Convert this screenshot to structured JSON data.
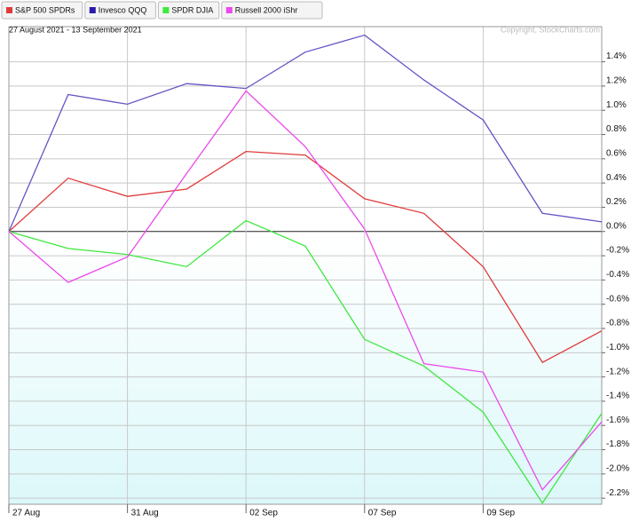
{
  "chart_data": {
    "type": "line",
    "subtitle": "27 August 2021 - 13 September 2021",
    "credit": "Copyright, StockCharts.com",
    "categories": [
      "27 Aug",
      null,
      "31 Aug",
      null,
      "02 Sep",
      null,
      "07 Sep",
      null,
      "09 Sep",
      null,
      null
    ],
    "series": [
      {
        "name": "S&P 500 SPDRs",
        "color": "#e03a3a",
        "values": [
          0,
          0.44,
          0.29,
          0.35,
          0.66,
          0.63,
          0.27,
          0.15,
          -0.29,
          -1.08,
          -0.82
        ]
      },
      {
        "name": "Invesco QQQ",
        "color": "#6a52c4",
        "legend_color": "#2b1aa8",
        "values": [
          0,
          1.13,
          1.05,
          1.22,
          1.18,
          1.48,
          1.62,
          1.25,
          0.92,
          0.15,
          0.08
        ]
      },
      {
        "name": "SPDR DJIA",
        "color": "#3ee83e",
        "values": [
          0,
          -0.14,
          -0.19,
          -0.29,
          0.09,
          -0.12,
          -0.89,
          -1.11,
          -1.49,
          -2.24,
          -1.5
        ]
      },
      {
        "name": "Russell 2000 iShr",
        "color": "#ec48ec",
        "values": [
          0,
          -0.42,
          -0.21,
          0.48,
          1.16,
          0.7,
          0.02,
          -1.09,
          -1.16,
          -2.13,
          -1.57
        ]
      }
    ],
    "ylim": [
      -2.25,
      1.69
    ],
    "yticks": [
      {
        "value": 1.4,
        "label": "1.4%"
      },
      {
        "value": 1.2,
        "label": "1.2%"
      },
      {
        "value": 1.0,
        "label": "1.0%"
      },
      {
        "value": 0.8,
        "label": "0.8%"
      },
      {
        "value": 0.6,
        "label": "0.6%"
      },
      {
        "value": 0.4,
        "label": "0.4%"
      },
      {
        "value": 0.2,
        "label": "0.2%"
      },
      {
        "value": 0,
        "label": "0.0%"
      },
      {
        "value": -0.2,
        "label": "-0.2%"
      },
      {
        "value": -0.4,
        "label": "-0.4%"
      },
      {
        "value": -0.6,
        "label": "-0.6%"
      },
      {
        "value": -0.8,
        "label": "-0.8%"
      },
      {
        "value": -1.0,
        "label": "-1.0%"
      },
      {
        "value": -1.2,
        "label": "-1.2%"
      },
      {
        "value": -1.4,
        "label": "-1.4%"
      },
      {
        "value": -1.6,
        "label": "-1.6%"
      },
      {
        "value": -1.8,
        "label": "-1.8%"
      },
      {
        "value": -2.0,
        "label": "-2.0%"
      },
      {
        "value": -2.2,
        "label": "-2.2%"
      }
    ],
    "grid": true,
    "legend": "top-left"
  }
}
